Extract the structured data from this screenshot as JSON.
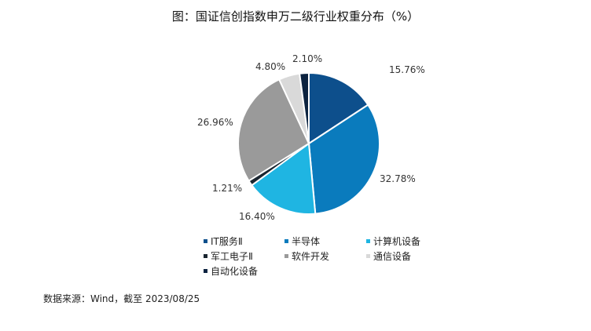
{
  "title": "图：国证信创指数申万二级行业权重分布（%）",
  "source": "数据来源：Wind，截至 2023/08/25",
  "chart_data": {
    "type": "pie",
    "title": "图：国证信创指数申万二级行业权重分布（%）",
    "legend_position": "bottom",
    "slices": [
      {
        "name": "IT服务Ⅱ",
        "value": 15.76,
        "label": "15.76%",
        "color": "#0d4f8c"
      },
      {
        "name": "半导体",
        "value": 32.78,
        "label": "32.78%",
        "color": "#0a7bbd"
      },
      {
        "name": "计算机设备",
        "value": 16.4,
        "label": "16.40%",
        "color": "#1fb5e2"
      },
      {
        "name": "军工电子Ⅱ",
        "value": 1.21,
        "label": "1.21%",
        "color": "#1a2530"
      },
      {
        "name": "软件开发",
        "value": 26.96,
        "label": "26.96%",
        "color": "#9a9a9a"
      },
      {
        "name": "通信设备",
        "value": 4.8,
        "label": "4.80%",
        "color": "#d9d9d9"
      },
      {
        "name": "自动化设备",
        "value": 2.1,
        "label": "2.10%",
        "color": "#0c2340"
      }
    ]
  }
}
